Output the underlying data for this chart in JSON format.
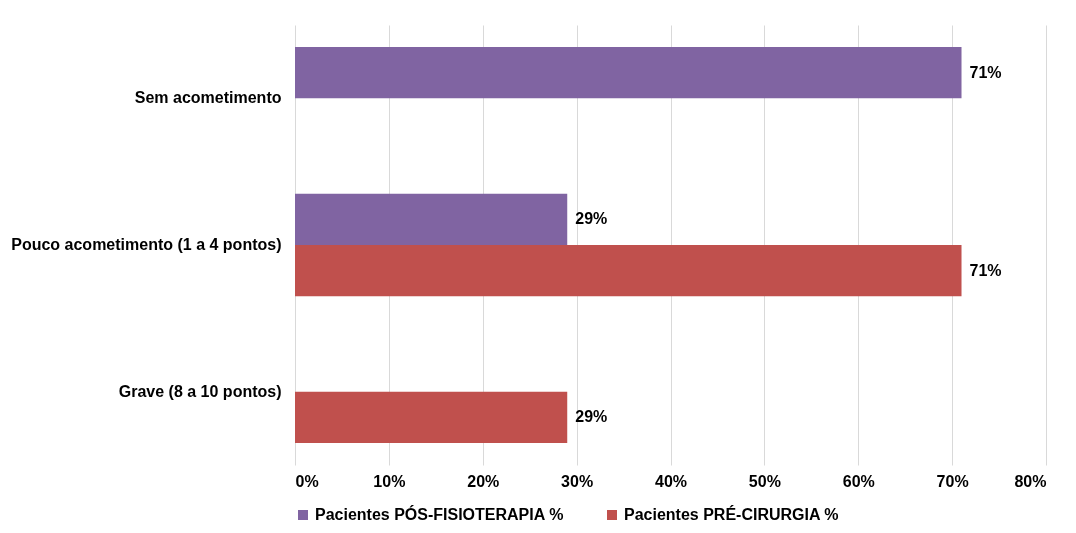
{
  "chart_data": {
    "type": "bar",
    "orientation": "horizontal",
    "categories": [
      "Sem acometimento",
      "Pouco acometimento (1 a 4 pontos)",
      "Grave (8 a 10 pontos)"
    ],
    "series": [
      {
        "name": "Pacientes PÓS-FISIOTERAPIA %",
        "color": "#8064a2",
        "values": [
          71,
          29,
          null
        ],
        "value_labels": [
          "71%",
          "29%",
          null
        ]
      },
      {
        "name": "Pacientes PRÉ-CIRURGIA %",
        "color": "#c0504d",
        "values": [
          null,
          71,
          29
        ],
        "value_labels": [
          null,
          "71%",
          "29%"
        ]
      }
    ],
    "xlim": [
      0,
      80
    ],
    "xticks": [
      {
        "value": 0,
        "label": "0%"
      },
      {
        "value": 10,
        "label": "10%"
      },
      {
        "value": 20,
        "label": "20%"
      },
      {
        "value": 30,
        "label": "30%"
      },
      {
        "value": 40,
        "label": "40%"
      },
      {
        "value": 50,
        "label": "50%"
      },
      {
        "value": 60,
        "label": "60%"
      },
      {
        "value": 70,
        "label": "70%"
      },
      {
        "value": 80,
        "label": "80%"
      }
    ],
    "grid": "x",
    "legend": "bottom"
  }
}
